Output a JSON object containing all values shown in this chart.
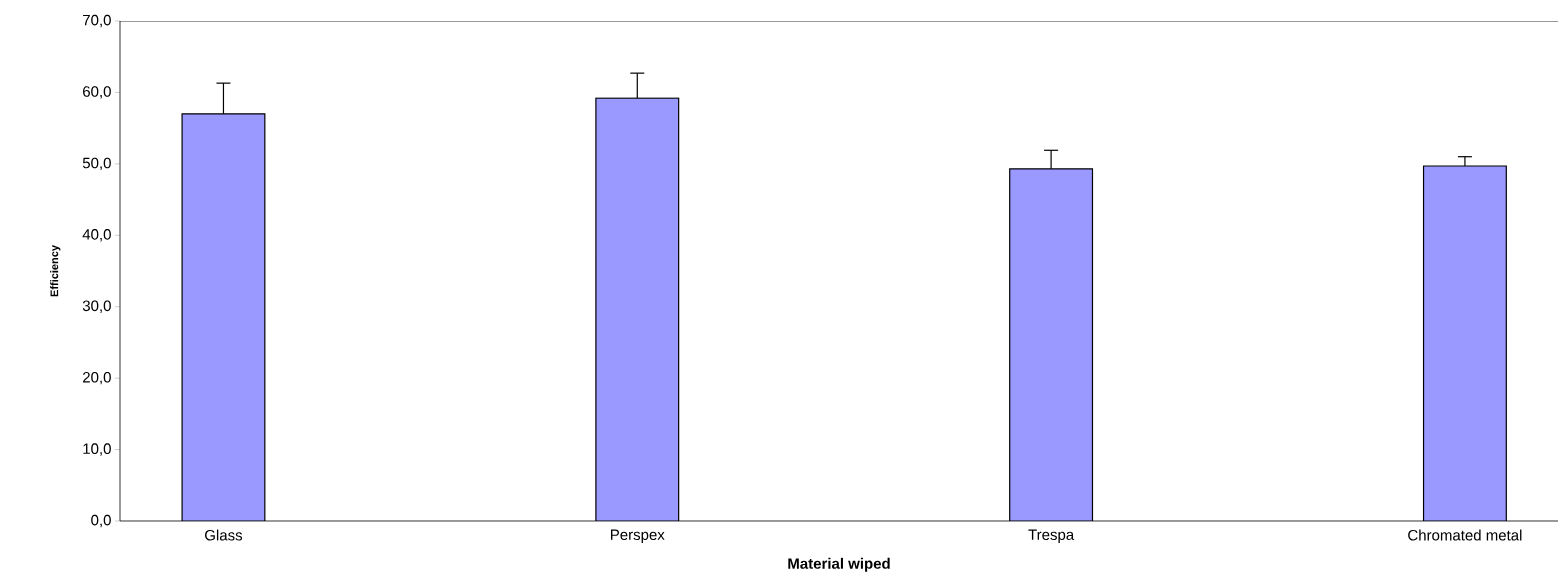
{
  "chart_data": {
    "type": "bar",
    "xlabel": "Material wiped",
    "ylabel": "Efficiency",
    "categories": [
      "Glass",
      null,
      "Perspex",
      null,
      "Trespa",
      null,
      "Chromated metal"
    ],
    "values": [
      57.0,
      null,
      59.2,
      null,
      49.3,
      null,
      49.7
    ],
    "errors": [
      4.3,
      null,
      3.5,
      null,
      2.6,
      null,
      1.3
    ],
    "color": "#9999ff",
    "ylim": [
      0,
      70
    ],
    "yticks": [
      {
        "value": 0,
        "label": "0,0"
      },
      {
        "value": 10,
        "label": "10,0"
      },
      {
        "value": 20,
        "label": "20,0"
      },
      {
        "value": 30,
        "label": "30,0"
      },
      {
        "value": 40,
        "label": "40,0"
      },
      {
        "value": 50,
        "label": "50,0"
      },
      {
        "value": 60,
        "label": "60,0"
      },
      {
        "value": 70,
        "label": "70,0"
      }
    ],
    "grid": false
  }
}
